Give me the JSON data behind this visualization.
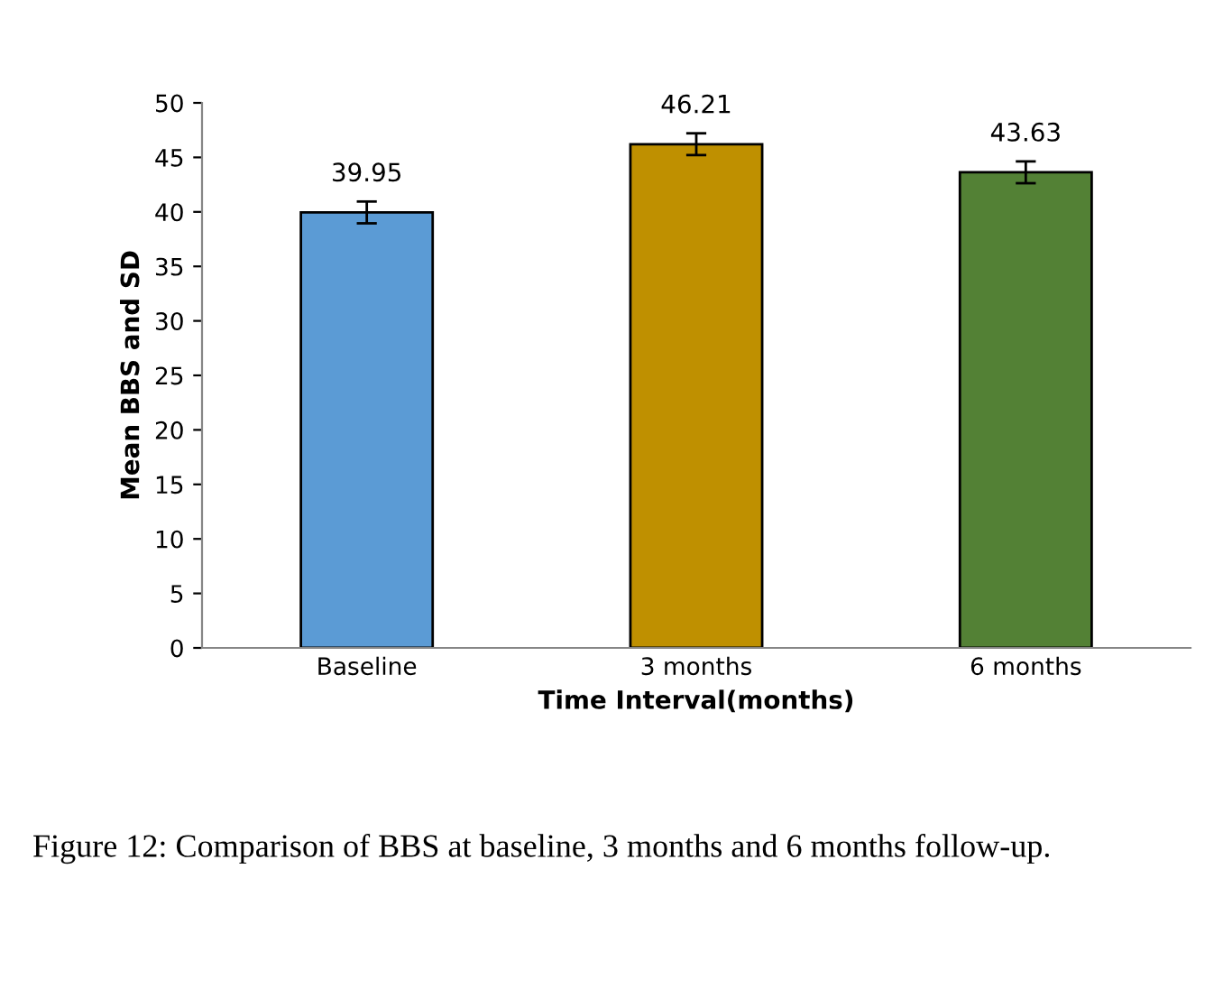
{
  "chart_data": {
    "type": "bar",
    "xlabel": "Time Interval(months)",
    "ylabel": "Mean BBS and SD",
    "categories": [
      "Baseline",
      "3 months",
      "6 months"
    ],
    "values": [
      39.95,
      46.21,
      43.63
    ],
    "errors": [
      1.0,
      1.0,
      1.0
    ],
    "colors": [
      "#5b9bd5",
      "#bf9000",
      "#538135"
    ],
    "ylim": [
      0,
      50
    ],
    "yticks": [
      0,
      5,
      10,
      15,
      20,
      25,
      30,
      35,
      40,
      45,
      50
    ],
    "grid": false,
    "data_labels": true,
    "annotations": [
      "Figure 12: Comparison of BBS at baseline, 3 months and 6 months follow-up."
    ]
  }
}
